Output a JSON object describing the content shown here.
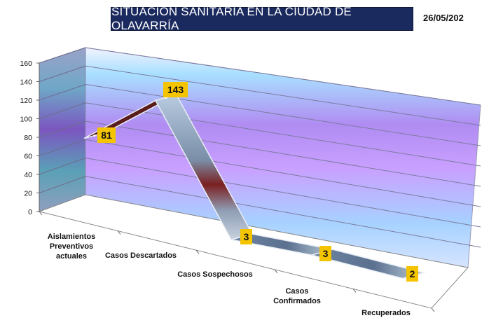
{
  "header": {
    "title": "SITUACIÓN SANITARIA EN LA CIUDAD DE OLAVARRÍA",
    "date": "26/05/202"
  },
  "chart_data": {
    "type": "line",
    "style": "3d-ribbon",
    "categories": [
      "Aislamientos Preventivos actuales",
      "Casos Descartados",
      "Casos Sospechosos",
      "Casos Confirmados",
      "Recuperados"
    ],
    "series": [
      {
        "values": [
          81,
          143,
          3,
          3,
          2
        ]
      }
    ],
    "data_labels": [
      "81",
      "143",
      "3",
      "3",
      "2"
    ],
    "yticks": [
      "0",
      "20",
      "40",
      "60",
      "80",
      "100",
      "120",
      "140",
      "160"
    ],
    "ylim": [
      0,
      160
    ],
    "grid": true,
    "legend": "none",
    "colors": {
      "label_bg": "#f5c400",
      "ribbon": "#8096b0",
      "ribbon_dark": "#7a2020",
      "wall_top": "#a8c8ff",
      "wall_mid": "#b68cf2"
    }
  }
}
